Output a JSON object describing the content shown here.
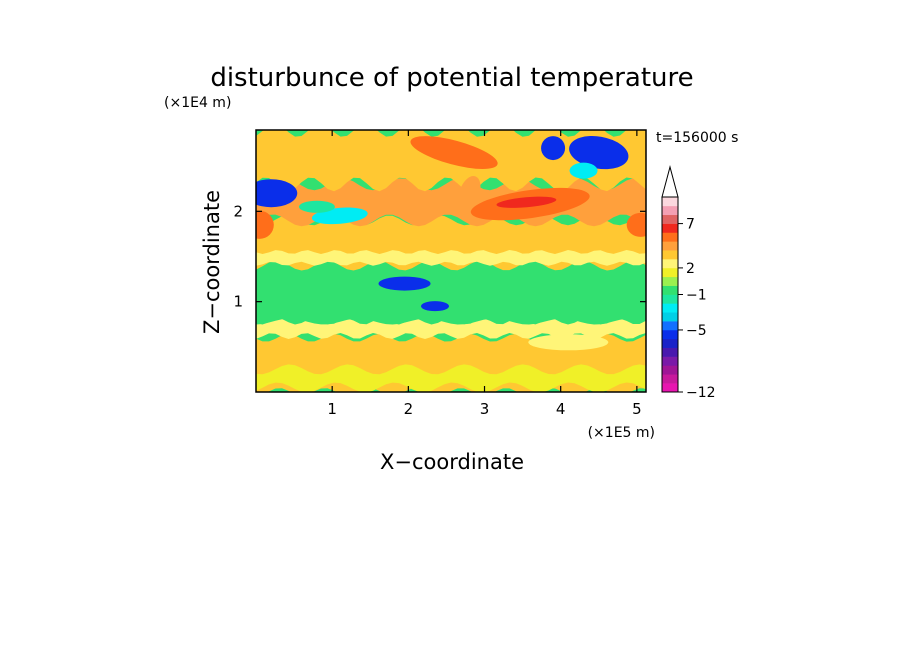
{
  "chart_data": {
    "type": "heatmap",
    "title": "disturbunce of potential temperature",
    "xlabel": "X−coordinate",
    "ylabel": "Z−coordinate",
    "x_unit": "(×1E5 m)",
    "y_unit": "(×1E4 m)",
    "time_label": "t=156000 s",
    "xlim": [
      0,
      5.12
    ],
    "ylim": [
      0,
      2.9
    ],
    "x_ticks": [
      1,
      2,
      3,
      4,
      5
    ],
    "y_ticks": [
      1,
      2
    ],
    "colorbar": {
      "levels": [
        -12,
        -11,
        -10,
        -9,
        -8,
        -7,
        -6,
        -5,
        -4,
        -3,
        -2,
        -1,
        0,
        1,
        2,
        3,
        4,
        5,
        6,
        7,
        8,
        9
      ],
      "labels": [
        -12,
        -5,
        -1,
        2,
        7
      ],
      "colors": [
        "#e815b0",
        "#c81a9c",
        "#a01696",
        "#7a1aa8",
        "#4818ae",
        "#1a22c8",
        "#0a2eea",
        "#1270ff",
        "#00cfe6",
        "#00ecf4",
        "#1ee6a0",
        "#32e070",
        "#9af050",
        "#f0f028",
        "#fff578",
        "#ffc832",
        "#ffa03c",
        "#ff6e1a",
        "#f0281e",
        "#e06464",
        "#f4a0b4",
        "#fbd8de"
      ],
      "extend_max": true
    },
    "grid": false,
    "legend": "right"
  }
}
